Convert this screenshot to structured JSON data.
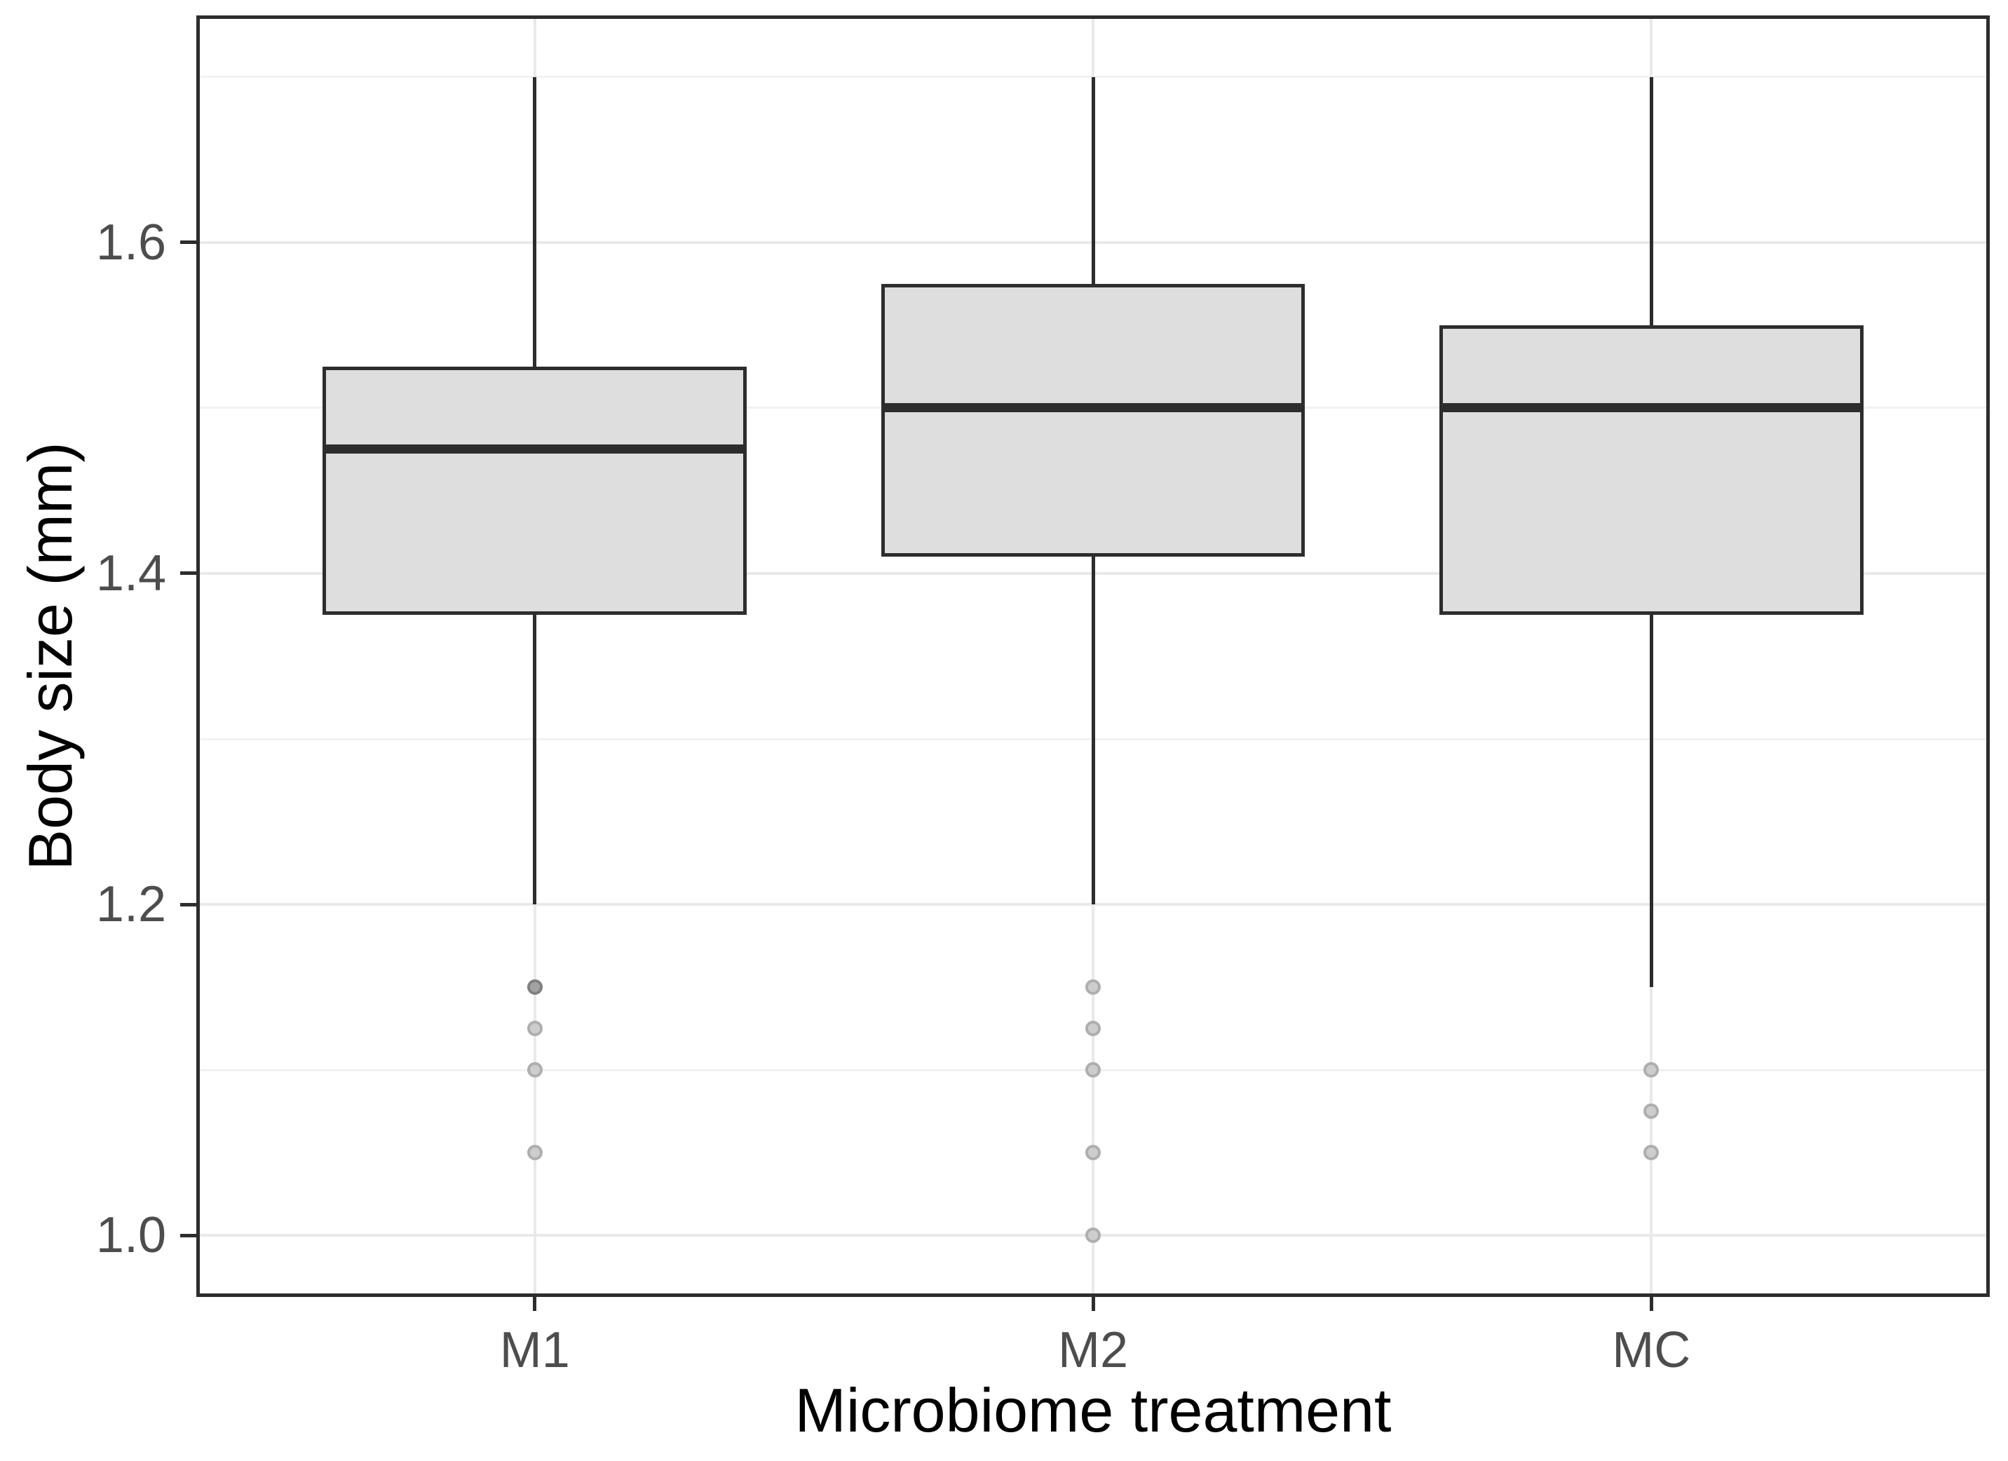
{
  "chart_data": {
    "type": "boxplot",
    "title": "",
    "xlabel": "Microbiome treatment",
    "ylabel": "Body size (mm)",
    "categories": [
      "M1",
      "M2",
      "MC"
    ],
    "y_axis": {
      "ticks": [
        1.0,
        1.2,
        1.4,
        1.6
      ],
      "tick_labels": [
        "1.0",
        "1.2",
        "1.4",
        "1.6"
      ],
      "minor_gridlines": [
        1.1,
        1.3,
        1.5,
        1.7
      ],
      "range": [
        0.965,
        1.735
      ]
    },
    "grid": "on",
    "legend": "none",
    "series": [
      {
        "name": "M1",
        "whisker_low": 1.2,
        "q1": 1.375,
        "median": 1.475,
        "q3": 1.525,
        "whisker_high": 1.7,
        "outliers": [
          {
            "value": 1.15,
            "shade": "dark"
          },
          {
            "value": 1.125,
            "shade": "light"
          },
          {
            "value": 1.1,
            "shade": "light"
          },
          {
            "value": 1.05,
            "shade": "light"
          }
        ]
      },
      {
        "name": "M2",
        "whisker_low": 1.2,
        "q1": 1.41,
        "median": 1.5,
        "q3": 1.575,
        "whisker_high": 1.7,
        "outliers": [
          {
            "value": 1.15,
            "shade": "light"
          },
          {
            "value": 1.125,
            "shade": "light"
          },
          {
            "value": 1.1,
            "shade": "light"
          },
          {
            "value": 1.05,
            "shade": "light"
          },
          {
            "value": 1.0,
            "shade": "light"
          }
        ]
      },
      {
        "name": "MC",
        "whisker_low": 1.15,
        "q1": 1.375,
        "median": 1.5,
        "q3": 1.55,
        "whisker_high": 1.7,
        "outliers": [
          {
            "value": 1.1,
            "shade": "light"
          },
          {
            "value": 1.075,
            "shade": "light"
          },
          {
            "value": 1.05,
            "shade": "light"
          }
        ]
      }
    ]
  },
  "colors": {
    "box_fill": "#dedede",
    "box_stroke": "#2d2d2d",
    "panel_border": "#2d2d2d",
    "gridline_major": "#e9e9e9",
    "gridline_minor": "#f1f1f1",
    "tick_label": "#4d4d4d",
    "axis_title": "#000000",
    "outlier_light": "#cdcdcd",
    "outlier_dark": "#a2a2a2"
  }
}
